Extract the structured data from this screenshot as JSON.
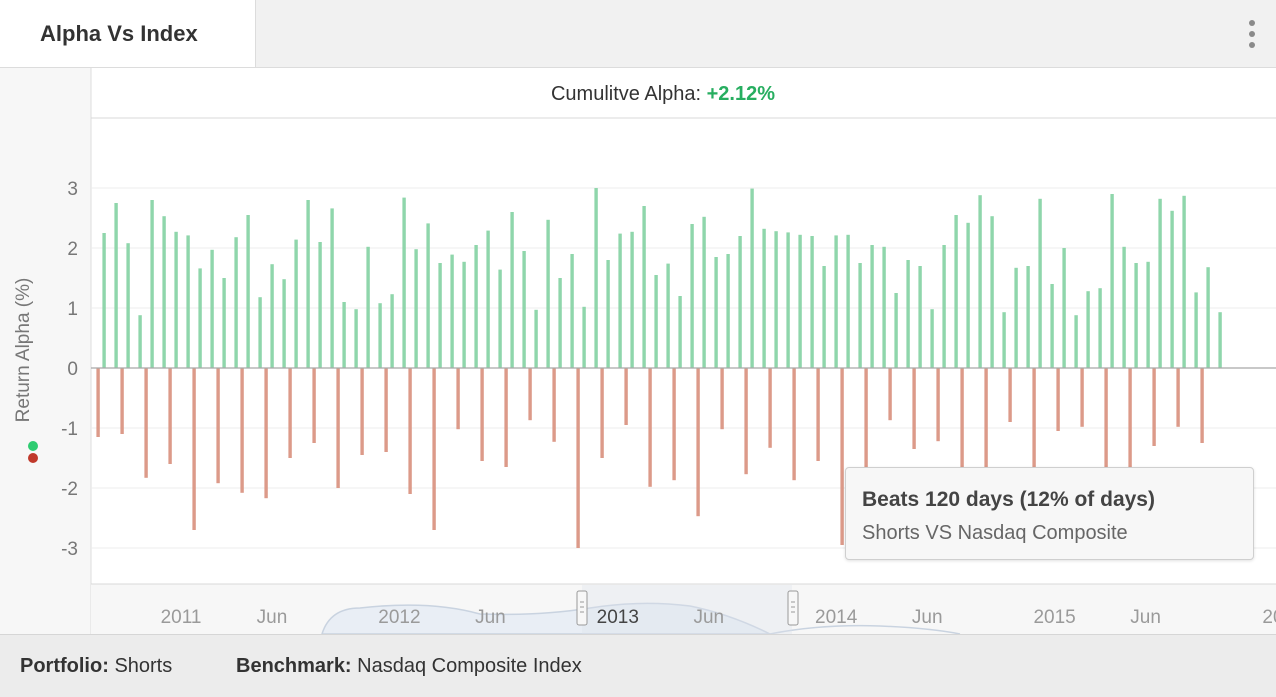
{
  "tab": {
    "label": "Alpha Vs Index"
  },
  "chart_data": {
    "type": "bar",
    "subtitle_prefix": "Cumulitve Alpha: ",
    "subtitle_value": "+2.12%",
    "ylabel": "Return Alpha (%)",
    "ylim": [
      -3.7,
      4.2
    ],
    "yticks": [
      "3",
      "2",
      "1",
      "0",
      "-1",
      "-2",
      "-3"
    ],
    "ytick_values": [
      3,
      2,
      1,
      0,
      -1,
      -2,
      -3
    ],
    "grid": true,
    "positive_color": "#8fd6ab",
    "negative_color": "#dc9a89",
    "x_start": "2010-08",
    "x_end": "2016-01",
    "xtick_labels": [
      "2011",
      "Jun",
      "2012",
      "Jun",
      "2013",
      "Jun",
      "2014",
      "Jun",
      "2015",
      "Jun",
      "20"
    ],
    "xtick_dates": [
      "2011-01",
      "2011-06",
      "2012-01",
      "2012-06",
      "2013-01",
      "2013-06",
      "2014-01",
      "2014-06",
      "2015-01",
      "2015-06",
      "2016-01"
    ],
    "positive_values": [
      2.25,
      2.75,
      2.08,
      0.88,
      2.8,
      2.53,
      2.27,
      2.21,
      1.66,
      1.97,
      1.5,
      2.18,
      2.55,
      1.18,
      1.73,
      1.48,
      2.14,
      2.8,
      2.1,
      2.66,
      1.1,
      0.98,
      2.02,
      1.08,
      1.23,
      2.84,
      1.98,
      2.41,
      1.75,
      1.89,
      1.77,
      2.05,
      2.29,
      1.64,
      2.6,
      1.95,
      0.97,
      2.47,
      1.5,
      1.9,
      1.02,
      3.0,
      1.8,
      2.24,
      2.27,
      2.7,
      1.55,
      1.74,
      1.2,
      2.4,
      2.52,
      1.85,
      1.9,
      2.2,
      2.99,
      2.32,
      2.28,
      2.26,
      2.22,
      2.2,
      1.7,
      2.21,
      2.22,
      1.75,
      2.05,
      2.02,
      1.25,
      1.8,
      1.7,
      0.98,
      2.05,
      2.55,
      2.42,
      2.88,
      2.53,
      0.93,
      1.67,
      1.7,
      2.82,
      1.4,
      2.0,
      0.88,
      1.28,
      1.33,
      2.9,
      2.02,
      1.75,
      1.77,
      2.82,
      2.62,
      2.87,
      1.26,
      1.68,
      0.93
    ],
    "negative_values": [
      -1.15,
      -1.1,
      -1.83,
      -1.6,
      -2.7,
      -1.92,
      -2.08,
      -2.17,
      -1.5,
      -1.25,
      -2.0,
      -1.45,
      -1.4,
      -2.1,
      -2.7,
      -1.02,
      -1.55,
      -1.65,
      -0.87,
      -1.23,
      -3.0,
      -1.5,
      -0.95,
      -1.98,
      -1.87,
      -2.47,
      -1.02,
      -1.77,
      -1.33,
      -1.87,
      -1.55,
      -2.95,
      -1.65,
      -0.87,
      -1.35,
      -1.22,
      -1.97,
      -2.72,
      -0.9,
      -1.7,
      -1.05,
      -0.98,
      -1.65,
      -1.65,
      -1.3,
      -0.98,
      -1.25
    ]
  },
  "tooltip": {
    "title": "Beats 120 days (12% of days)",
    "subtitle": "Shorts VS Nasdaq Composite"
  },
  "footer": {
    "portfolio_label": "Portfolio:",
    "portfolio_value": "Shorts",
    "benchmark_label": "Benchmark:",
    "benchmark_value": "Nasdaq Composite Index"
  }
}
